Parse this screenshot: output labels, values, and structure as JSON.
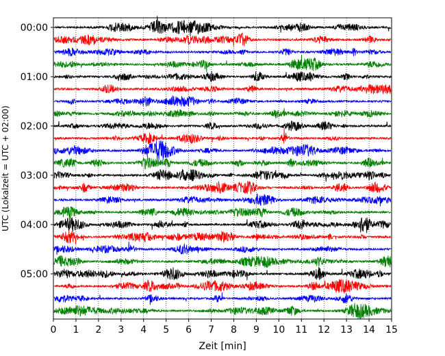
{
  "chart_data": {
    "type": "line",
    "title": "",
    "xlabel": "Zeit  [min]",
    "ylabel": "UTC (Lokalzeit = UTC + 02:00)",
    "xlim": [
      0,
      15
    ],
    "x_ticks": [
      0,
      1,
      2,
      3,
      4,
      5,
      6,
      7,
      8,
      9,
      10,
      11,
      12,
      13,
      14,
      15
    ],
    "x_tick_labels": [
      "0",
      "1",
      "2",
      "3",
      "4",
      "5",
      "6",
      "7",
      "8",
      "9",
      "10",
      "11",
      "12",
      "13",
      "14",
      "15"
    ],
    "y_tick_labels": [
      "00:00",
      "01:00",
      "02:00",
      "03:00",
      "04:00",
      "05:00"
    ],
    "y_tick_hours": [
      0,
      1,
      2,
      3,
      4,
      5
    ],
    "trace_interval_min": 15,
    "trace_count": 24,
    "trace_start_hours": [
      0,
      0.25,
      0.5,
      0.75,
      1,
      1.25,
      1.5,
      1.75,
      2,
      2.25,
      2.5,
      2.75,
      3,
      3.25,
      3.5,
      3.75,
      4,
      4.25,
      4.5,
      4.75,
      5,
      5.25,
      5.5,
      5.75
    ],
    "trace_colors": [
      "#000000",
      "#ff0000",
      "#0000ff",
      "#008000"
    ],
    "grid": "vertical dotted lines at each minute",
    "legend": "none"
  }
}
